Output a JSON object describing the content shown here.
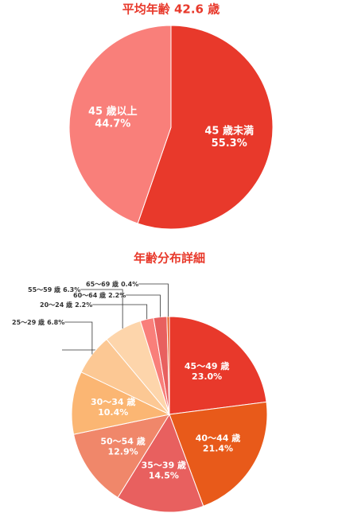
{
  "chart_data": [
    {
      "type": "pie",
      "title": "平均年齢 42.6 歳",
      "categories": [
        "45 歳未満",
        "45 歳以上"
      ],
      "values": [
        55.3,
        44.7
      ],
      "value_labels": [
        "55.3%",
        "44.7%"
      ],
      "colors": [
        "#e8392b",
        "#f97f7a"
      ]
    },
    {
      "type": "pie",
      "title": "年齢分布詳細",
      "categories": [
        "45〜49 歳",
        "40〜44 歳",
        "35〜39 歳",
        "50〜54 歳",
        "30〜34 歳",
        "25〜29 歳",
        "55〜59 歳",
        "20〜24 歳",
        "60〜64 歳",
        "65〜69 歳"
      ],
      "values": [
        23.0,
        21.4,
        14.5,
        12.9,
        10.4,
        6.8,
        6.3,
        2.2,
        2.2,
        0.4
      ],
      "value_labels": [
        "23.0%",
        "21.4%",
        "14.5%",
        "12.9%",
        "10.4%",
        "6.8%",
        "6.3%",
        "2.2%",
        "2.2%",
        "0.4%"
      ],
      "colors": [
        "#e8392b",
        "#e85a1a",
        "#e8605f",
        "#f0876a",
        "#fbb673",
        "#fcc894",
        "#fdd5ab",
        "#f97f7a",
        "#e8605f",
        "#e85a1a"
      ]
    }
  ]
}
